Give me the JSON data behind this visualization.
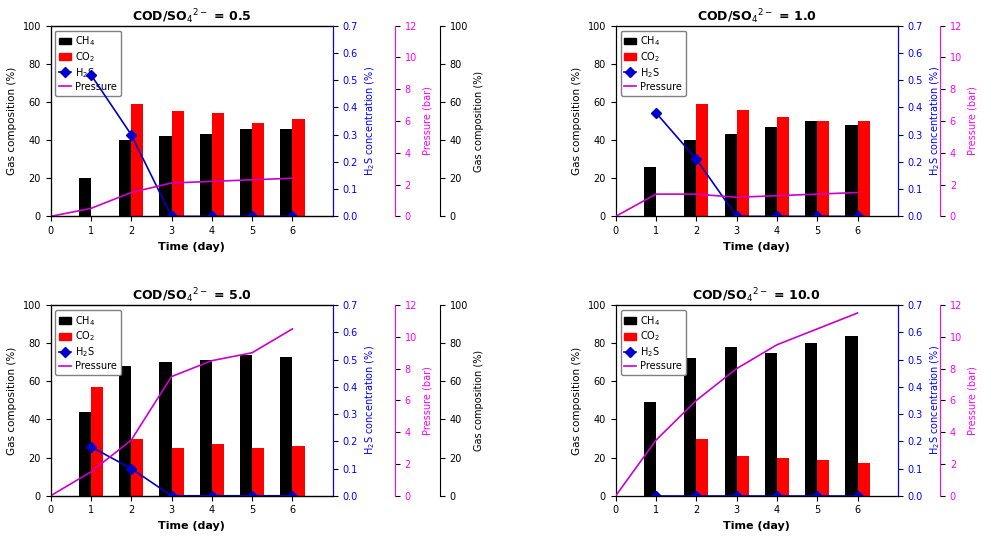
{
  "subplots": [
    {
      "title_plain": "COD/SO",
      "title_value": "0.5",
      "days": [
        1,
        2,
        3,
        4,
        5,
        6
      ],
      "ch4": [
        20,
        40,
        42,
        43,
        46,
        46
      ],
      "co2": [
        0,
        59,
        55,
        54,
        49,
        51
      ],
      "h2s_x": [
        1,
        2,
        3,
        4,
        5,
        6
      ],
      "h2s": [
        0.52,
        0.3,
        0.0,
        0.0,
        0.0,
        0.0
      ],
      "pressure_x": [
        0,
        1,
        2,
        3,
        4,
        5,
        6
      ],
      "pressure_y": [
        0,
        0.5,
        1.5,
        2.1,
        2.2,
        2.3,
        2.4
      ],
      "extra_right_label": true
    },
    {
      "title_value": "1.0",
      "days": [
        1,
        2,
        3,
        4,
        5,
        6
      ],
      "ch4": [
        26,
        40,
        43,
        47,
        50,
        48
      ],
      "co2": [
        0,
        59,
        56,
        52,
        50,
        50
      ],
      "h2s_x": [
        1,
        2,
        3,
        4,
        5,
        6
      ],
      "h2s": [
        0.38,
        0.21,
        0.0,
        0.0,
        0.0,
        0.0
      ],
      "pressure_x": [
        0,
        1,
        2,
        3,
        4,
        5,
        6
      ],
      "pressure_y": [
        0,
        1.4,
        1.4,
        1.2,
        1.3,
        1.4,
        1.5
      ],
      "extra_right_label": false
    },
    {
      "title_value": "5.0",
      "days": [
        1,
        2,
        3,
        4,
        5,
        6
      ],
      "ch4": [
        44,
        68,
        70,
        71,
        74,
        73
      ],
      "co2": [
        57,
        30,
        25,
        27,
        25,
        26
      ],
      "h2s_x": [
        1,
        2,
        3,
        4,
        5,
        6
      ],
      "h2s": [
        0.18,
        0.1,
        0.0,
        0.0,
        0.0,
        0.0
      ],
      "pressure_x": [
        0,
        1,
        2,
        3,
        4,
        5,
        6
      ],
      "pressure_y": [
        0,
        1.5,
        3.5,
        7.5,
        8.5,
        9.0,
        10.5
      ],
      "extra_right_label": true
    },
    {
      "title_value": "10.0",
      "days": [
        1,
        2,
        3,
        4,
        5,
        6
      ],
      "ch4": [
        49,
        72,
        78,
        75,
        80,
        84
      ],
      "co2": [
        0,
        30,
        21,
        20,
        19,
        17
      ],
      "h2s_x": [
        1,
        2,
        3,
        4,
        5,
        6
      ],
      "h2s": [
        0.0,
        0.0,
        0.0,
        0.0,
        0.0,
        0.0
      ],
      "pressure_x": [
        0,
        1,
        2,
        3,
        4,
        5,
        6
      ],
      "pressure_y": [
        0,
        3.5,
        6.0,
        8.0,
        9.5,
        10.5,
        11.5
      ],
      "extra_right_label": false
    }
  ],
  "bar_width": 0.3,
  "ch4_color": "#000000",
  "co2_color": "#ff0000",
  "h2s_color": "#0000cc",
  "pressure_color": "#cc00cc",
  "xlim": [
    0,
    7
  ],
  "ylim_left": [
    0,
    100
  ],
  "ylim_h2s": [
    0.0,
    0.7
  ],
  "ylim_pressure": [
    0,
    12
  ],
  "xlabel": "Time (day)",
  "ylabel_left": "Gas composition (%)",
  "ylabel_h2s": "H$_2$S concentration (%)",
  "ylabel_pressure": "Pressure (bar)",
  "legend_labels": [
    "CH$_4$",
    "CO$_2$",
    "H$_2$S",
    "Pressure"
  ],
  "h2s_yticks": [
    0.0,
    0.1,
    0.2,
    0.3,
    0.4,
    0.5,
    0.6,
    0.7
  ],
  "pressure_yticks": [
    0,
    2,
    4,
    6,
    8,
    10,
    12
  ],
  "left_yticks": [
    0,
    20,
    40,
    60,
    80,
    100
  ]
}
